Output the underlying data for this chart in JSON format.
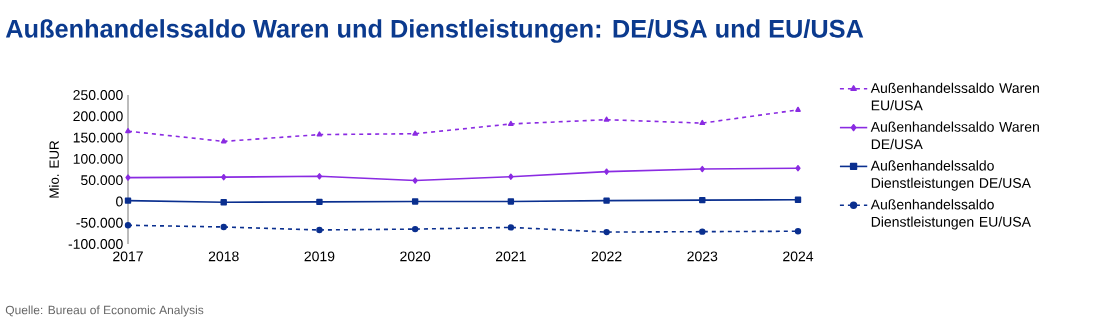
{
  "chart_data": {
    "type": "line",
    "title": "Außenhandelssaldo Waren und Dienstleistungen: DE/USA und EU/USA",
    "ylabel": "Mio. EUR",
    "categories": [
      "2017",
      "2018",
      "2019",
      "2020",
      "2021",
      "2022",
      "2023",
      "2024"
    ],
    "series": [
      {
        "name": "Außenhandelssaldo Waren EU/USA",
        "color": "#8a2be2",
        "marker": "triangle",
        "line_style": "dashed",
        "values": [
          165000,
          141000,
          157000,
          159000,
          182000,
          192000,
          184000,
          215000
        ]
      },
      {
        "name": "Außenhandelssaldo Waren DE/USA",
        "color": "#8a2be2",
        "marker": "diamond",
        "line_style": "solid",
        "values": [
          56000,
          57000,
          59000,
          49000,
          58000,
          70000,
          76000,
          78000
        ]
      },
      {
        "name": "Außenhandelssaldo Dienstleistungen DE/USA",
        "color": "#0a2f8f",
        "marker": "square",
        "line_style": "solid",
        "values": [
          2000,
          -2000,
          -1000,
          0,
          0,
          2000,
          3000,
          4000
        ]
      },
      {
        "name": "Außenhandelssaldo Dienstleistungen EU/USA",
        "color": "#0a2f8f",
        "marker": "circle",
        "line_style": "dashed",
        "values": [
          -56000,
          -60000,
          -67000,
          -65000,
          -61000,
          -72000,
          -71000,
          -70000
        ]
      }
    ],
    "ylim": [
      -100000,
      250000
    ],
    "yticks": [
      {
        "value": -100000,
        "label": "-100.000"
      },
      {
        "value": -50000,
        "label": "-50.000"
      },
      0,
      {
        "value": 50000,
        "label": "50.000"
      },
      {
        "value": 100000,
        "label": "100.000"
      },
      {
        "value": 150000,
        "label": "150.000"
      },
      {
        "value": 200000,
        "label": "200.000"
      },
      {
        "value": 250000,
        "label": "250.000"
      }
    ],
    "legend": "right",
    "grid": false,
    "annotations": [
      "Quelle: Bureau of Economic Analysis"
    ]
  }
}
